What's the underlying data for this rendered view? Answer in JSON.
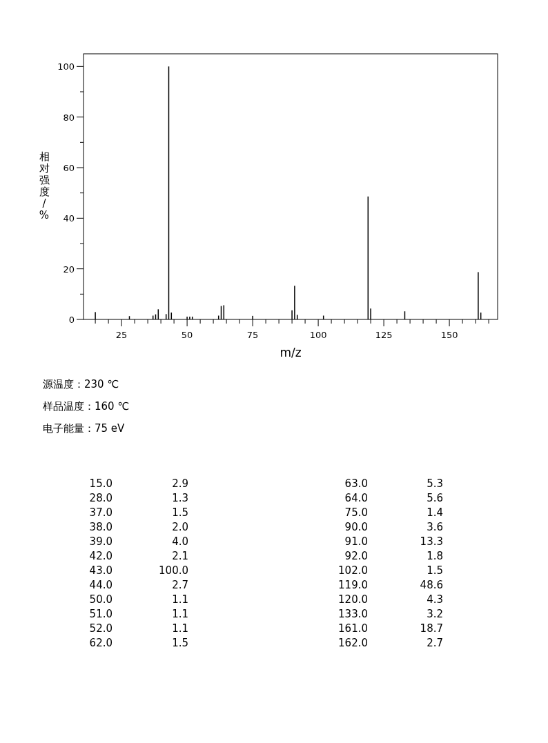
{
  "chart_data": {
    "type": "bar",
    "xlabel": "m/z",
    "ylabel": "相对强度/%",
    "color": "#000000",
    "x": [
      15,
      28,
      37,
      38,
      39,
      42,
      43,
      44,
      50,
      51,
      52,
      62,
      63,
      64,
      75,
      90,
      91,
      92,
      102,
      119,
      120,
      133,
      161,
      162
    ],
    "values": [
      2.9,
      1.3,
      1.5,
      2.0,
      4.0,
      2.1,
      100.0,
      2.7,
      1.1,
      1.1,
      1.1,
      1.5,
      5.3,
      5.6,
      1.4,
      3.6,
      13.3,
      1.8,
      1.5,
      48.6,
      4.3,
      3.2,
      18.7,
      2.7
    ],
    "xlim": [
      10.5,
      168.4
    ],
    "ylim": [
      0,
      105
    ],
    "xticks": [
      {
        "value": 15,
        "label": null
      },
      {
        "value": 20,
        "label": null
      },
      25,
      {
        "value": 30,
        "label": null
      },
      {
        "value": 35,
        "label": null
      },
      {
        "value": 40,
        "label": null
      },
      {
        "value": 45,
        "label": null
      },
      50,
      {
        "value": 55,
        "label": null
      },
      {
        "value": 60,
        "label": null
      },
      {
        "value": 65,
        "label": null
      },
      {
        "value": 70,
        "label": null
      },
      75,
      {
        "value": 80,
        "label": null
      },
      {
        "value": 85,
        "label": null
      },
      {
        "value": 90,
        "label": null
      },
      {
        "value": 95,
        "label": null
      },
      100,
      {
        "value": 105,
        "label": null
      },
      {
        "value": 110,
        "label": null
      },
      {
        "value": 115,
        "label": null
      },
      {
        "value": 120,
        "label": null
      },
      125,
      {
        "value": 130,
        "label": null
      },
      {
        "value": 135,
        "label": null
      },
      {
        "value": 140,
        "label": null
      },
      {
        "value": 145,
        "label": null
      },
      150,
      {
        "value": 155,
        "label": null
      },
      {
        "value": 160,
        "label": null
      },
      {
        "value": 165,
        "label": null
      }
    ],
    "yticks": [
      0,
      {
        "value": 10,
        "label": null
      },
      20,
      {
        "value": 30,
        "label": null
      },
      40,
      {
        "value": 50,
        "label": null
      },
      60,
      {
        "value": 70,
        "label": null
      },
      80,
      {
        "value": 90,
        "label": null
      },
      100
    ],
    "annotations": [
      "源温度：230 ℃",
      "样品温度：160 ℃",
      "电子能量：75 eV",
      "15.0",
      "2.9",
      "28.0",
      "1.3",
      "37.0",
      "1.5",
      "38.0",
      "2.0",
      "39.0",
      "4.0",
      "42.0",
      "2.1",
      "43.0",
      "100.0",
      "44.0",
      "2.7",
      "50.0",
      "1.1",
      "51.0",
      "1.1",
      "52.0",
      "1.1",
      "62.0",
      "1.5",
      "63.0",
      "5.3",
      "64.0",
      "5.6",
      "75.0",
      "1.4",
      "90.0",
      "3.6",
      "91.0",
      "13.3",
      "92.0",
      "1.8",
      "102.0",
      "1.5",
      "119.0",
      "48.6",
      "120.0",
      "4.3",
      "133.0",
      "3.2",
      "161.0",
      "18.7",
      "162.0",
      "2.7"
    ]
  }
}
